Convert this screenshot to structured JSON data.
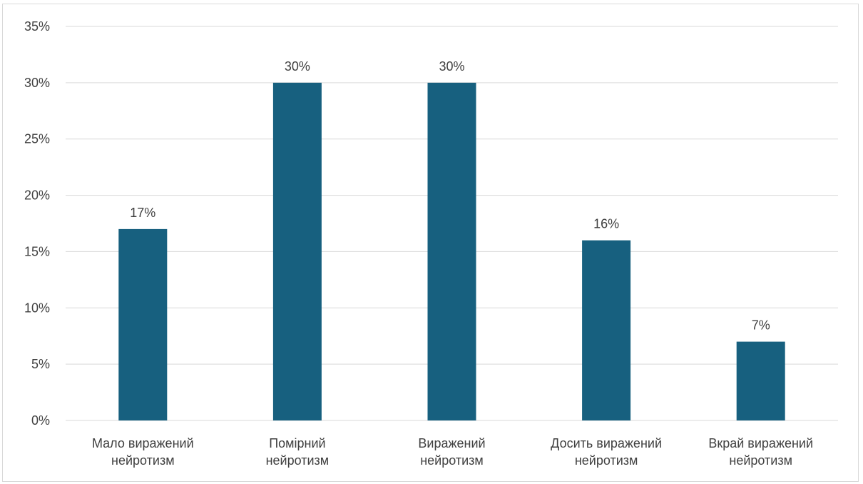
{
  "chart_data": {
    "type": "bar",
    "categories": [
      [
        "Мало виражений",
        "нейротизм"
      ],
      [
        "Помірний",
        "нейротизм"
      ],
      [
        "Виражений",
        "нейротизм"
      ],
      [
        "Досить виражений",
        "нейротизм"
      ],
      [
        "Вкрай виражений",
        "нейротизм"
      ]
    ],
    "values": [
      17,
      30,
      30,
      16,
      7
    ],
    "data_labels": [
      "17%",
      "30%",
      "30%",
      "16%",
      "7%"
    ],
    "y_ticks": [
      "0%",
      "5%",
      "10%",
      "15%",
      "20%",
      "25%",
      "30%",
      "35%"
    ],
    "ylim": [
      0,
      35
    ],
    "grid": true,
    "legend": "none",
    "bar_color": "#17607f",
    "grid_color": "#d9d9d9",
    "text_color": "#404040"
  }
}
